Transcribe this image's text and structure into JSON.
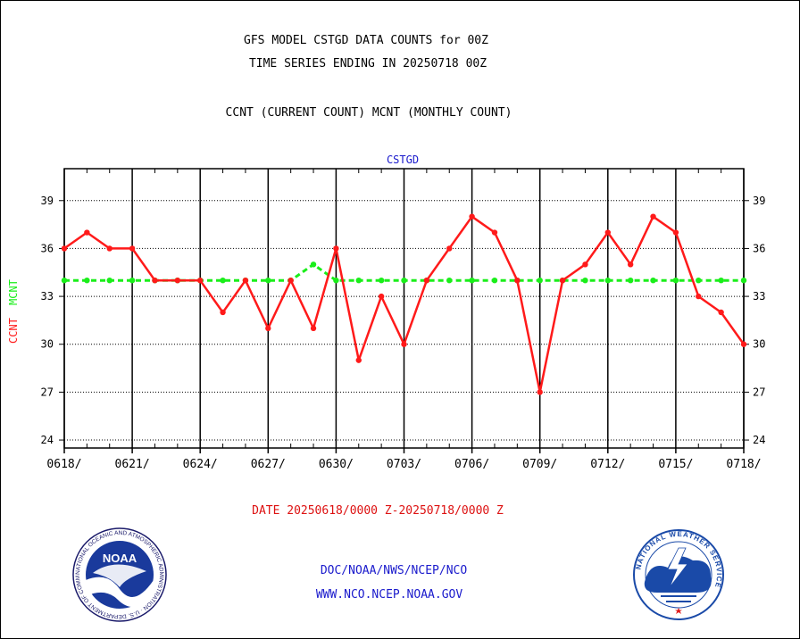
{
  "header": {
    "title_line1": "GFS MODEL CSTGD DATA COUNTS for 00Z",
    "title_line2": "TIME SERIES ENDING IN 20250718 00Z",
    "subtitle": "CCNT (CURRENT COUNT) MCNT (MONTHLY COUNT)",
    "station_label": "CSTGD"
  },
  "footer": {
    "date_range": "DATE 20250618/0000 Z-20250718/0000 Z",
    "link_org": "DOC/NOAA/NWS/NCEP/NCO",
    "link_web": "WWW.NCO.NCEP.NOAA.GOV",
    "noaa_logo_text": "NOAA",
    "noaa_ring_text": "NATIONAL OCEANIC AND ATMOSPHERIC ADMINISTRATION · U.S. DEPARTMENT OF COMMERCE",
    "nws_ring_text": "NATIONAL WEATHER SERVICE"
  },
  "colors": {
    "ccnt": "#ff1a1a",
    "mcnt": "#1aee1a",
    "title_blue": "#1a1acc",
    "footer_red": "#dd1111",
    "noaa_blue": "#1a3a9c",
    "nws_blue": "#1a4aa8"
  },
  "chart_data": {
    "type": "line",
    "title": "GFS MODEL CSTGD DATA COUNTS for 00Z",
    "ylabel_left": "CCNT",
    "ylabel_right": "MCNT",
    "x_tick_labels": [
      "0618/",
      "0621/",
      "0624/",
      "0627/",
      "0630/",
      "0703/",
      "0706/",
      "0709/",
      "0712/",
      "0715/",
      "0718/"
    ],
    "x_start_date": "20250618",
    "x_end_date": "20250718",
    "ylim": [
      23.5,
      41
    ],
    "y_ticks": [
      24,
      27,
      30,
      33,
      36,
      39
    ],
    "grid": true,
    "series": [
      {
        "name": "CCNT",
        "style": "solid",
        "values": [
          36,
          37,
          36,
          36,
          34,
          34,
          34,
          32,
          34,
          31,
          34,
          31,
          36,
          29,
          33,
          30,
          34,
          36,
          38,
          37,
          34,
          27,
          34,
          35,
          37,
          35,
          38,
          37,
          33,
          32,
          30
        ]
      },
      {
        "name": "MCNT",
        "style": "dashed",
        "values": [
          34,
          34,
          34,
          34,
          34,
          34,
          34,
          34,
          34,
          34,
          34,
          35,
          34,
          34,
          34,
          34,
          34,
          34,
          34,
          34,
          34,
          34,
          34,
          34,
          34,
          34,
          34,
          34,
          34,
          34,
          34
        ]
      }
    ]
  }
}
